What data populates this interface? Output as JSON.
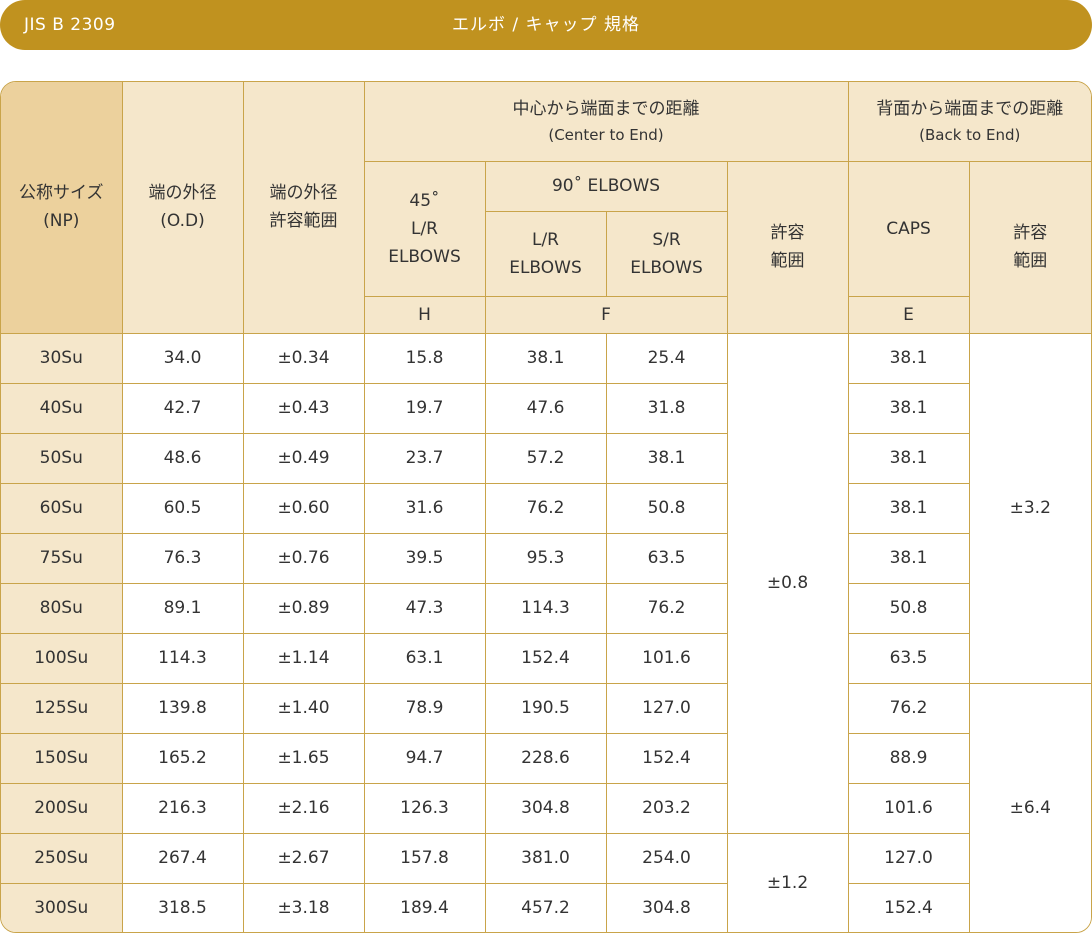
{
  "banner": {
    "standard": "JIS B 2309",
    "title": "エルボ / キャップ 規格"
  },
  "headers": {
    "np": "公称サイズ",
    "np_sub": "(NP)",
    "od": "端の外径",
    "od_sub": "(O.D)",
    "od_tol_1": "端の外径",
    "od_tol_2": "許容範囲",
    "cte": "中心から端面までの距離",
    "cte_sub": "(Center to End)",
    "bte": "背面から端面までの距離",
    "bte_sub": "(Back to End)",
    "e45_1": "45˚",
    "e45_2": "L/R",
    "e45_3": "ELBOWS",
    "e90": "90˚ ELBOWS",
    "lr_1": "L/R",
    "lr_2": "ELBOWS",
    "sr_1": "S/R",
    "sr_2": "ELBOWS",
    "tol_cte_1": "許容",
    "tol_cte_2": "範囲",
    "caps": "CAPS",
    "tol_bte_1": "許容",
    "tol_bte_2": "範囲",
    "h": "H",
    "f": "F",
    "e": "E"
  },
  "rows": [
    {
      "np": "30Su",
      "od": "34.0",
      "od_tol": "±0.34",
      "h": "15.8",
      "lr": "38.1",
      "sr": "25.4",
      "e": "38.1"
    },
    {
      "np": "40Su",
      "od": "42.7",
      "od_tol": "±0.43",
      "h": "19.7",
      "lr": "47.6",
      "sr": "31.8",
      "e": "38.1"
    },
    {
      "np": "50Su",
      "od": "48.6",
      "od_tol": "±0.49",
      "h": "23.7",
      "lr": "57.2",
      "sr": "38.1",
      "e": "38.1"
    },
    {
      "np": "60Su",
      "od": "60.5",
      "od_tol": "±0.60",
      "h": "31.6",
      "lr": "76.2",
      "sr": "50.8",
      "e": "38.1"
    },
    {
      "np": "75Su",
      "od": "76.3",
      "od_tol": "±0.76",
      "h": "39.5",
      "lr": "95.3",
      "sr": "63.5",
      "e": "38.1"
    },
    {
      "np": "80Su",
      "od": "89.1",
      "od_tol": "±0.89",
      "h": "47.3",
      "lr": "114.3",
      "sr": "76.2",
      "e": "50.8"
    },
    {
      "np": "100Su",
      "od": "114.3",
      "od_tol": "±1.14",
      "h": "63.1",
      "lr": "152.4",
      "sr": "101.6",
      "e": "63.5"
    },
    {
      "np": "125Su",
      "od": "139.8",
      "od_tol": "±1.40",
      "h": "78.9",
      "lr": "190.5",
      "sr": "127.0",
      "e": "76.2"
    },
    {
      "np": "150Su",
      "od": "165.2",
      "od_tol": "±1.65",
      "h": "94.7",
      "lr": "228.6",
      "sr": "152.4",
      "e": "88.9"
    },
    {
      "np": "200Su",
      "od": "216.3",
      "od_tol": "±2.16",
      "h": "126.3",
      "lr": "304.8",
      "sr": "203.2",
      "e": "101.6"
    },
    {
      "np": "250Su",
      "od": "267.4",
      "od_tol": "±2.67",
      "h": "157.8",
      "lr": "381.0",
      "sr": "254.0",
      "e": "127.0"
    },
    {
      "np": "300Su",
      "od": "318.5",
      "od_tol": "±3.18",
      "h": "189.4",
      "lr": "457.2",
      "sr": "304.8",
      "e": "152.4"
    }
  ],
  "tolerances": {
    "cte_small": "±0.8",
    "cte_large": "±1.2",
    "bte_small": "±3.2",
    "bte_large": "±6.4"
  }
}
